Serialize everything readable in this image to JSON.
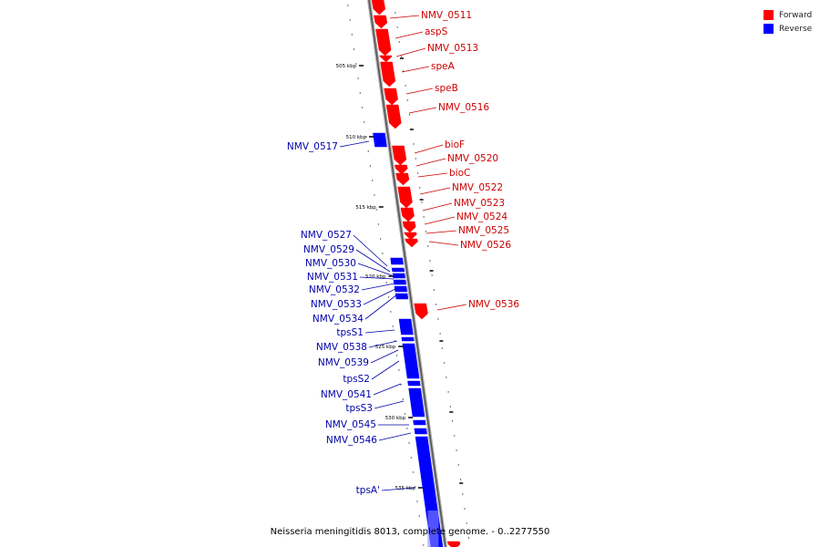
{
  "legend": {
    "items": [
      {
        "label": "Forward",
        "color": "#ff0000"
      },
      {
        "label": "Reverse",
        "color": "#0000ff"
      }
    ]
  },
  "caption": "Neisseria meningitidis 8013, complete genome. - 0..2277550",
  "colors": {
    "forward": "#ff0000",
    "reverse": "#0000ff",
    "backbone": "#999999",
    "forward_label": "#cc0000",
    "reverse_label": "#0000aa"
  },
  "kbp_labels": [
    "505 kbp",
    "510 kbp",
    "515 kbp",
    "520 kbp",
    "525 kbp",
    "530 kbp",
    "535 kbp"
  ],
  "forward_genes": [
    "NMV_0511",
    "aspS",
    "NMV_0513",
    "speA",
    "speB",
    "NMV_0516",
    "bioF",
    "NMV_0520",
    "bioC",
    "NMV_0522",
    "NMV_0523",
    "NMV_0524",
    "NMV_0525",
    "NMV_0526",
    "NMV_0536"
  ],
  "reverse_genes": [
    "NMV_0517",
    "NMV_0527",
    "NMV_0529",
    "NMV_0530",
    "NMV_0531",
    "NMV_0532",
    "NMV_0533",
    "NMV_0534",
    "tpsS1",
    "NMV_0538",
    "NMV_0539",
    "tpsS2",
    "NMV_0541",
    "tpsS3",
    "NMV_0545",
    "NMV_0546",
    "tpsA'"
  ]
}
